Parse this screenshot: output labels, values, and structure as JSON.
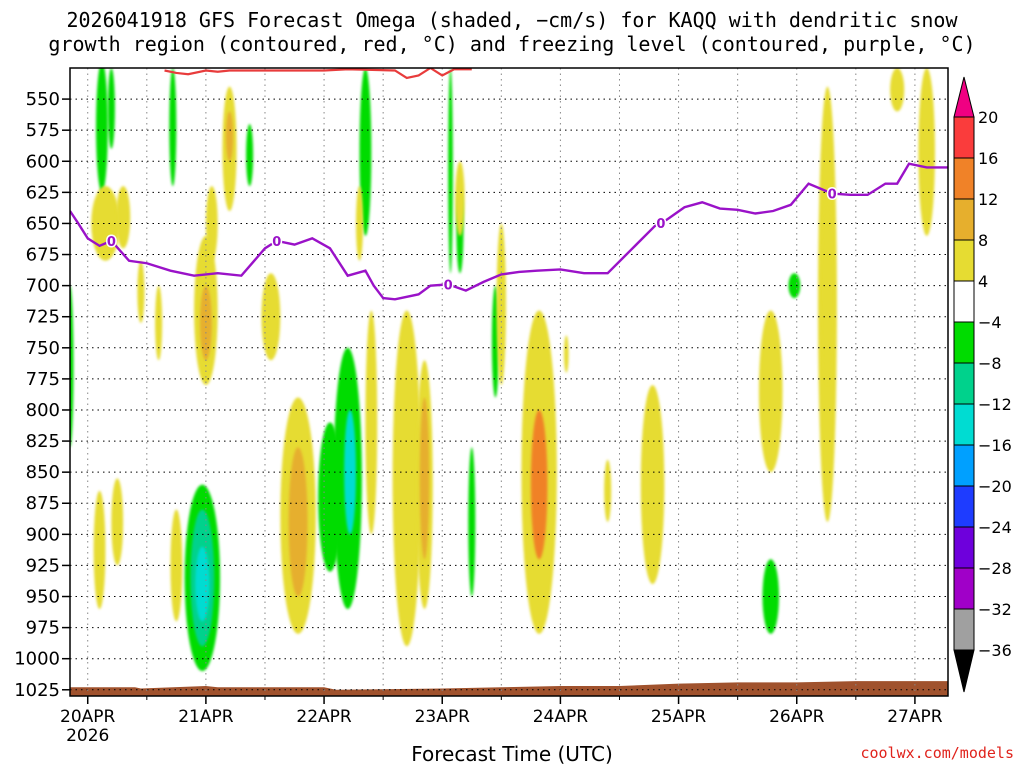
{
  "chart_data": {
    "type": "heatmap",
    "title_line1": "2026041918 GFS Forecast Omega (shaded, −cm/s) for KAQQ with dendritic snow",
    "title_line2": "growth region (contoured, red, °C) and freezing level (contoured, purple, °C)",
    "xlabel": "Forecast Time (UTC)",
    "x_tick_labels": [
      "20APR",
      "21APR",
      "22APR",
      "23APR",
      "24APR",
      "25APR",
      "26APR",
      "27APR"
    ],
    "x_year_label": "2026",
    "x_range": [
      -0.15,
      7.28
    ],
    "y_tick_labels": [
      550,
      575,
      600,
      625,
      650,
      675,
      700,
      725,
      750,
      775,
      800,
      825,
      850,
      875,
      900,
      925,
      950,
      975,
      1000,
      1025
    ],
    "y_range": [
      1030,
      525
    ],
    "grid": true,
    "colorbar": {
      "levels": [
        -36,
        -32,
        -28,
        -24,
        -20,
        -16,
        -12,
        -8,
        -4,
        4,
        8,
        12,
        16,
        20
      ],
      "colors": [
        "#a0a0a0",
        "#a000c8",
        "#6e00dc",
        "#1e3cff",
        "#00a0ff",
        "#00dcd2",
        "#00d28c",
        "#00dc00",
        "#ffffff",
        "#e6dc32",
        "#e6af2d",
        "#f08228",
        "#fa3c3c",
        "#f00082"
      ],
      "under_color": "#000000",
      "over_color": "#f00082"
    },
    "freezing_level": {
      "label": "0",
      "days": [
        -0.15,
        -0.08,
        0.0,
        0.1,
        0.2,
        0.35,
        0.5,
        0.7,
        0.9,
        1.1,
        1.3,
        1.5,
        1.6,
        1.75,
        1.9,
        2.05,
        2.2,
        2.35,
        2.42,
        2.5,
        2.6,
        2.8,
        2.9,
        3.05,
        3.2,
        3.35,
        3.5,
        3.65,
        3.8,
        4.0,
        4.2,
        4.4,
        4.6,
        4.8,
        4.9,
        5.05,
        5.2,
        5.35,
        5.5,
        5.65,
        5.8,
        5.95,
        6.1,
        6.2,
        6.3,
        6.45,
        6.6,
        6.75,
        6.85,
        6.95,
        7.1,
        7.28
      ],
      "hpa": [
        640,
        650,
        662,
        668,
        664,
        680,
        682,
        688,
        692,
        690,
        692,
        670,
        664,
        667,
        662,
        670,
        692,
        688,
        700,
        710,
        711,
        707,
        700,
        699,
        704,
        697,
        691,
        689,
        688,
        687,
        690,
        690,
        671,
        652,
        647,
        637,
        633,
        638,
        639,
        642,
        640,
        635,
        618,
        622,
        626,
        627,
        627,
        618,
        618,
        602,
        605,
        605
      ]
    },
    "dgz_contour": {
      "days": [
        0.65,
        0.75,
        0.85,
        1.0,
        1.1,
        1.2,
        1.3,
        2.0,
        2.2,
        2.6,
        2.7,
        2.8,
        2.9,
        3.0,
        3.1,
        3.25
      ],
      "hpa": [
        527,
        529,
        530,
        527,
        528,
        527,
        527,
        527,
        526,
        527,
        533,
        531,
        525,
        531,
        526,
        526
      ]
    },
    "omega_blobs": [
      {
        "day": 0.12,
        "top": 520,
        "bottom": 625,
        "w": 0.05,
        "value": -6
      },
      {
        "day": 0.2,
        "top": 525,
        "bottom": 590,
        "w": 0.03,
        "value": -6
      },
      {
        "day": 0.15,
        "top": 620,
        "bottom": 680,
        "w": 0.12,
        "value": 6
      },
      {
        "day": 0.3,
        "top": 620,
        "bottom": 670,
        "w": 0.06,
        "value": 6
      },
      {
        "day": 0.25,
        "top": 855,
        "bottom": 925,
        "w": 0.05,
        "value": 5
      },
      {
        "day": 0.1,
        "top": 865,
        "bottom": 960,
        "w": 0.05,
        "value": 5
      },
      {
        "day": 0.75,
        "top": 880,
        "bottom": 970,
        "w": 0.05,
        "value": 5
      },
      {
        "day": 0.72,
        "top": 525,
        "bottom": 620,
        "w": 0.03,
        "value": -6
      },
      {
        "day": 0.45,
        "top": 680,
        "bottom": 730,
        "w": 0.03,
        "value": 5
      },
      {
        "day": 0.6,
        "top": 700,
        "bottom": 760,
        "w": 0.03,
        "value": 5
      },
      {
        "day": 1.0,
        "top": 660,
        "bottom": 780,
        "w": 0.1,
        "value": 6
      },
      {
        "day": 1.0,
        "top": 700,
        "bottom": 760,
        "w": 0.05,
        "value": 9
      },
      {
        "day": 1.2,
        "top": 540,
        "bottom": 640,
        "w": 0.06,
        "value": 6
      },
      {
        "day": 1.2,
        "top": 560,
        "bottom": 600,
        "w": 0.03,
        "value": 9
      },
      {
        "day": 1.05,
        "top": 620,
        "bottom": 680,
        "w": 0.05,
        "value": 6
      },
      {
        "day": 0.97,
        "top": 860,
        "bottom": 1010,
        "w": 0.15,
        "value": -8
      },
      {
        "day": 0.97,
        "top": 880,
        "bottom": 990,
        "w": 0.1,
        "value": -10
      },
      {
        "day": 0.97,
        "top": 910,
        "bottom": 970,
        "w": 0.06,
        "value": -14
      },
      {
        "day": 1.37,
        "top": 570,
        "bottom": 620,
        "w": 0.03,
        "value": -6
      },
      {
        "day": 1.55,
        "top": 690,
        "bottom": 760,
        "w": 0.08,
        "value": 6
      },
      {
        "day": 1.78,
        "top": 790,
        "bottom": 980,
        "w": 0.15,
        "value": 6
      },
      {
        "day": 1.78,
        "top": 830,
        "bottom": 950,
        "w": 0.08,
        "value": 9
      },
      {
        "day": 2.05,
        "top": 810,
        "bottom": 930,
        "w": 0.1,
        "value": -6
      },
      {
        "day": 2.2,
        "top": 750,
        "bottom": 960,
        "w": 0.12,
        "value": -8
      },
      {
        "day": 2.22,
        "top": 800,
        "bottom": 900,
        "w": 0.05,
        "value": -14
      },
      {
        "day": 2.35,
        "top": 525,
        "bottom": 660,
        "w": 0.05,
        "value": -6
      },
      {
        "day": 2.3,
        "top": 620,
        "bottom": 680,
        "w": 0.03,
        "value": 6
      },
      {
        "day": 2.4,
        "top": 720,
        "bottom": 900,
        "w": 0.05,
        "value": 6
      },
      {
        "day": 2.7,
        "top": 720,
        "bottom": 990,
        "w": 0.12,
        "value": 5
      },
      {
        "day": 2.85,
        "top": 760,
        "bottom": 960,
        "w": 0.07,
        "value": 6
      },
      {
        "day": 2.85,
        "top": 790,
        "bottom": 920,
        "w": 0.04,
        "value": 11
      },
      {
        "day": 3.07,
        "top": 525,
        "bottom": 690,
        "w": 0.02,
        "value": -6
      },
      {
        "day": 3.15,
        "top": 620,
        "bottom": 690,
        "w": 0.03,
        "value": -6
      },
      {
        "day": 3.15,
        "top": 600,
        "bottom": 660,
        "w": 0.04,
        "value": 6
      },
      {
        "day": 3.25,
        "top": 830,
        "bottom": 950,
        "w": 0.03,
        "value": -6
      },
      {
        "day": 3.45,
        "top": 700,
        "bottom": 790,
        "w": 0.03,
        "value": -6
      },
      {
        "day": 3.5,
        "top": 650,
        "bottom": 780,
        "w": 0.04,
        "value": 5
      },
      {
        "day": 3.82,
        "top": 720,
        "bottom": 980,
        "w": 0.15,
        "value": 6
      },
      {
        "day": 3.82,
        "top": 800,
        "bottom": 920,
        "w": 0.07,
        "value": 12
      },
      {
        "day": 4.05,
        "top": 740,
        "bottom": 770,
        "w": 0.02,
        "value": 5
      },
      {
        "day": 4.4,
        "top": 840,
        "bottom": 890,
        "w": 0.03,
        "value": 5
      },
      {
        "day": 4.78,
        "top": 780,
        "bottom": 940,
        "w": 0.1,
        "value": 6
      },
      {
        "day": 5.78,
        "top": 720,
        "bottom": 850,
        "w": 0.1,
        "value": 6
      },
      {
        "day": 5.78,
        "top": 920,
        "bottom": 980,
        "w": 0.07,
        "value": -8
      },
      {
        "day": 5.98,
        "top": 690,
        "bottom": 710,
        "w": 0.05,
        "value": -6
      },
      {
        "day": 6.26,
        "top": 540,
        "bottom": 890,
        "w": 0.08,
        "value": 6
      },
      {
        "day": 6.26,
        "top": 630,
        "bottom": 780,
        "w": 0.05,
        "value": 6
      },
      {
        "day": 6.85,
        "top": 525,
        "bottom": 560,
        "w": 0.06,
        "value": 5
      },
      {
        "day": 7.1,
        "top": 525,
        "bottom": 660,
        "w": 0.07,
        "value": 5
      },
      {
        "day": -0.15,
        "top": 700,
        "bottom": 830,
        "w": 0.03,
        "value": -6
      }
    ],
    "terrain": {
      "color": "#a0522d",
      "days": [
        -0.15,
        0.4,
        0.45,
        1.0,
        1.1,
        2.0,
        2.1,
        3.0,
        3.5,
        4.0,
        4.5,
        5.0,
        5.5,
        6.0,
        6.5,
        7.28
      ],
      "hpa": [
        1023,
        1023,
        1024,
        1022,
        1023,
        1023,
        1025,
        1024,
        1023,
        1022,
        1022,
        1020,
        1019,
        1019,
        1018,
        1018
      ]
    }
  },
  "credit": "coolwx.com/models"
}
